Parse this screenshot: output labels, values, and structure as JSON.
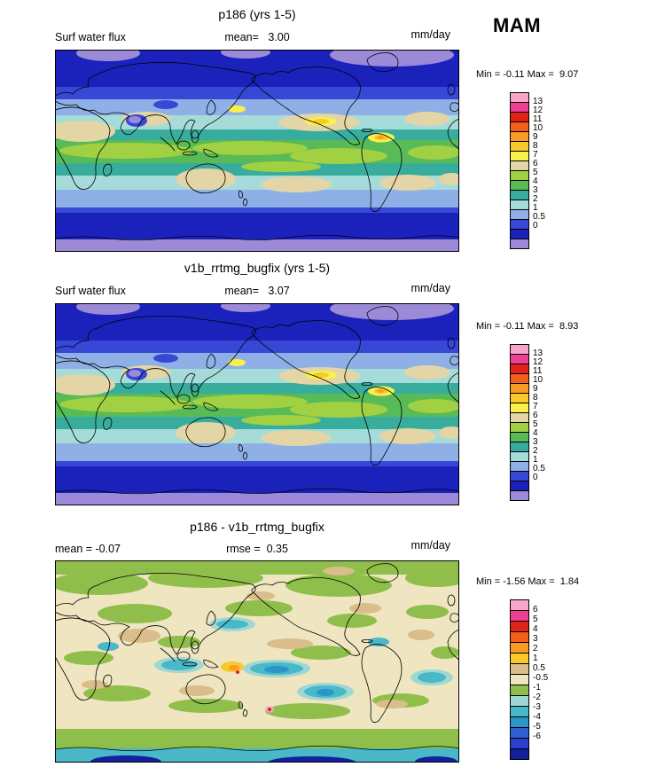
{
  "season": "MAM",
  "panels": [
    {
      "title": "p186 (yrs 1-5)",
      "left_label": "Surf water flux",
      "center_stat": "mean=   3.00",
      "units": "mm/day",
      "range_label": "Min = -0.11 Max =  9.07",
      "colorbar": {
        "tick_labels": [
          "13",
          "12",
          "11",
          "10",
          "9",
          "8",
          "7",
          "6",
          "5",
          "4",
          "3",
          "2",
          "1",
          "0.5",
          "0"
        ],
        "cell_colors": [
          "#f7a6ca",
          "#ef3f94",
          "#e02218",
          "#f2601c",
          "#f99c27",
          "#f7c92b",
          "#f9f04b",
          "#e3d5a5",
          "#a2d043",
          "#58bb57",
          "#38ad9d",
          "#a5dcda",
          "#8fb0e6",
          "#3748d6",
          "#1a22bb",
          "#9c8ad8"
        ]
      }
    },
    {
      "title": "v1b_rrtmg_bugfix (yrs 1-5)",
      "left_label": "Surf water flux",
      "center_stat": "mean=   3.07",
      "units": "mm/day",
      "range_label": "Min = -0.11 Max =  8.93",
      "colorbar": {
        "tick_labels": [
          "13",
          "12",
          "11",
          "10",
          "9",
          "8",
          "7",
          "6",
          "5",
          "4",
          "3",
          "2",
          "1",
          "0.5",
          "0"
        ],
        "cell_colors": [
          "#f7a6ca",
          "#ef3f94",
          "#e02218",
          "#f2601c",
          "#f99c27",
          "#f7c92b",
          "#f9f04b",
          "#e3d5a5",
          "#a2d043",
          "#58bb57",
          "#38ad9d",
          "#a5dcda",
          "#8fb0e6",
          "#3748d6",
          "#1a22bb",
          "#9c8ad8"
        ]
      }
    },
    {
      "title": "p186 - v1b_rrtmg_bugfix",
      "left_label": "mean = -0.07",
      "center_stat": "rmse =  0.35",
      "units": "mm/day",
      "range_label": "Min = -1.56 Max =  1.84",
      "colorbar": {
        "tick_labels": [
          "6",
          "5",
          "4",
          "3",
          "2",
          "1",
          "0.5",
          "-0.5",
          "-1",
          "-2",
          "-3",
          "-4",
          "-5",
          "-6"
        ],
        "cell_colors": [
          "#f7a6ca",
          "#ef3f94",
          "#e02218",
          "#f2601c",
          "#f99c27",
          "#f7c92b",
          "#d9bd8a",
          "#efe5c1",
          "#8fbf4a",
          "#9fd8d2",
          "#49b8c8",
          "#2a95c8",
          "#2f62d0",
          "#2d3fd2",
          "#141f9c"
        ]
      }
    }
  ],
  "chart_data": [
    {
      "type": "heatmap",
      "title": "p186 (yrs 1-5)",
      "variable": "Surf water flux",
      "units": "mm/day",
      "season": "MAM",
      "region": "global lat-lon map",
      "mean": 3.0,
      "min": -0.11,
      "max": 9.07,
      "contour_levels": [
        0,
        0.5,
        1,
        2,
        3,
        4,
        5,
        6,
        7,
        8,
        9,
        10,
        11,
        12,
        13
      ],
      "palette_low_to_high": [
        "#9c8ad8",
        "#1a22bb",
        "#3748d6",
        "#8fb0e6",
        "#a5dcda",
        "#38ad9d",
        "#58bb57",
        "#a2d043",
        "#e3d5a5",
        "#f9f04b",
        "#f7c92b",
        "#f99c27",
        "#f2601c",
        "#e02218",
        "#ef3f94",
        "#f7a6ca"
      ]
    },
    {
      "type": "heatmap",
      "title": "v1b_rrtmg_bugfix (yrs 1-5)",
      "variable": "Surf water flux",
      "units": "mm/day",
      "season": "MAM",
      "region": "global lat-lon map",
      "mean": 3.07,
      "min": -0.11,
      "max": 8.93,
      "contour_levels": [
        0,
        0.5,
        1,
        2,
        3,
        4,
        5,
        6,
        7,
        8,
        9,
        10,
        11,
        12,
        13
      ],
      "palette_low_to_high": [
        "#9c8ad8",
        "#1a22bb",
        "#3748d6",
        "#8fb0e6",
        "#a5dcda",
        "#38ad9d",
        "#58bb57",
        "#a2d043",
        "#e3d5a5",
        "#f9f04b",
        "#f7c92b",
        "#f99c27",
        "#f2601c",
        "#e02218",
        "#ef3f94",
        "#f7a6ca"
      ]
    },
    {
      "type": "heatmap",
      "title": "p186 - v1b_rrtmg_bugfix",
      "variable": "Surf water flux difference",
      "units": "mm/day",
      "season": "MAM",
      "region": "global lat-lon map",
      "mean": -0.07,
      "rmse": 0.35,
      "min": -1.56,
      "max": 1.84,
      "contour_levels": [
        -6,
        -5,
        -4,
        -3,
        -2,
        -1,
        -0.5,
        0.5,
        1,
        2,
        3,
        4,
        5,
        6
      ],
      "palette_low_to_high": [
        "#141f9c",
        "#2d3fd2",
        "#2f62d0",
        "#2a95c8",
        "#49b8c8",
        "#9fd8d2",
        "#8fbf4a",
        "#efe5c1",
        "#d9bd8a",
        "#f7c92b",
        "#f99c27",
        "#f2601c",
        "#e02218",
        "#ef3f94",
        "#f7a6ca"
      ]
    }
  ]
}
